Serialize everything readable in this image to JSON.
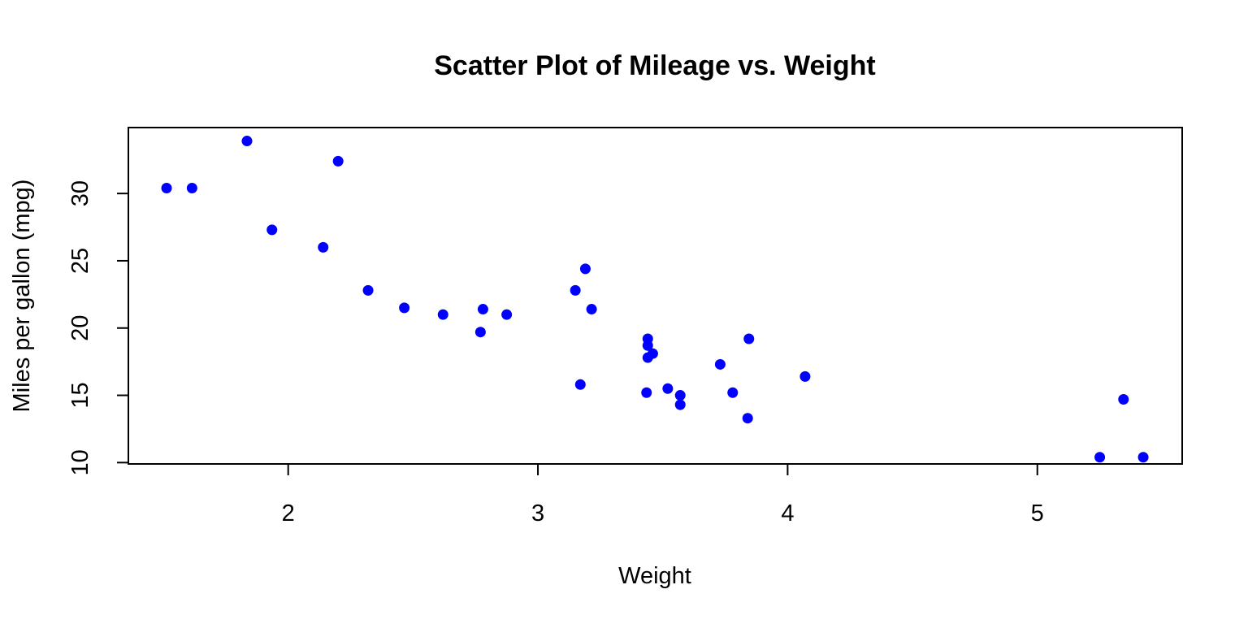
{
  "chart_data": {
    "type": "scatter",
    "title": "Scatter Plot of Mileage vs. Weight",
    "xlabel": "Weight",
    "ylabel": "Miles per gallon (mpg)",
    "xlim": [
      1.36,
      5.58
    ],
    "ylim": [
      9.9,
      34.9
    ],
    "xticks": [
      2,
      3,
      4,
      5
    ],
    "yticks": [
      10,
      15,
      20,
      25,
      30
    ],
    "grid": false,
    "legend": "none",
    "point_color": "#0000ff",
    "x": [
      2.62,
      2.875,
      2.32,
      3.215,
      3.44,
      3.46,
      3.57,
      3.19,
      3.15,
      3.44,
      3.44,
      4.07,
      3.73,
      3.78,
      5.25,
      5.424,
      5.345,
      2.2,
      1.615,
      1.835,
      2.465,
      3.52,
      3.435,
      3.84,
      3.845,
      1.935,
      2.14,
      1.513,
      3.17,
      2.77,
      3.57,
      2.78
    ],
    "y": [
      21.0,
      21.0,
      22.8,
      21.4,
      18.7,
      18.1,
      14.3,
      24.4,
      22.8,
      19.2,
      17.8,
      16.4,
      17.3,
      15.2,
      10.4,
      10.4,
      14.7,
      32.4,
      30.4,
      33.9,
      21.5,
      15.5,
      15.2,
      13.3,
      19.2,
      27.3,
      26.0,
      30.4,
      15.8,
      19.7,
      15.0,
      21.4
    ]
  }
}
